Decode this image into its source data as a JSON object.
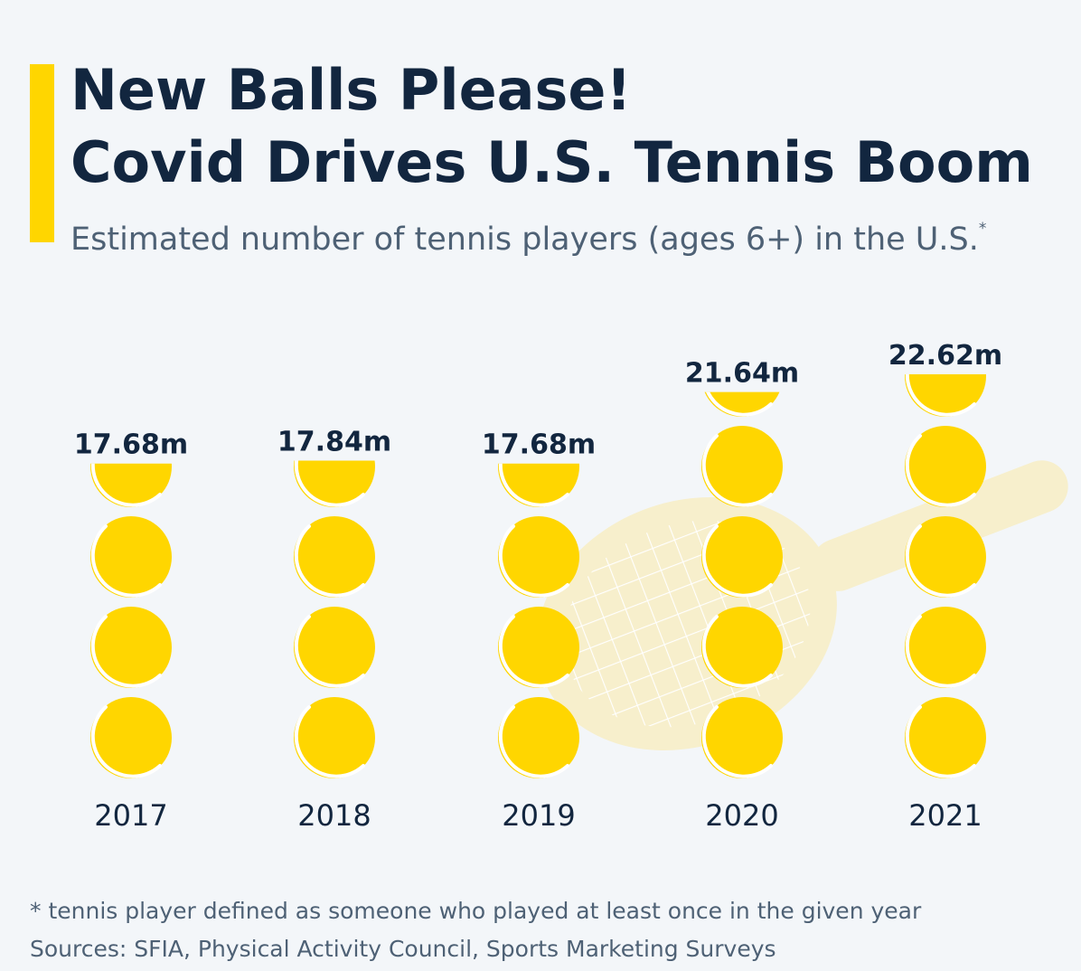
{
  "header": {
    "title_line1": "New Balls Please!",
    "title_line2": "Covid Drives U.S. Tennis Boom",
    "subtitle": "Estimated number of tennis players (ages 6+) in the U.S.",
    "subtitle_mark": "*"
  },
  "footer": {
    "footnote": "* tennis player defined as someone who played at least once in the given year",
    "sources": "Sources: SFIA, Physical Activity Council, Sports Marketing Surveys"
  },
  "colors": {
    "background": "#f3f6f9",
    "accent": "#ffd600",
    "ball": "#ffd600",
    "ball_seam": "#ffffff",
    "racket": "#f7efcc",
    "text_dark": "#12263f",
    "text_muted": "#4e6175"
  },
  "icons": {
    "unit_icon": "tennis-ball-icon",
    "background_icon": "tennis-racket-icon"
  },
  "chart_data": {
    "type": "bar",
    "categories": [
      "2017",
      "2018",
      "2019",
      "2020",
      "2021"
    ],
    "values": [
      17.68,
      17.84,
      17.68,
      21.64,
      22.62
    ],
    "value_labels": [
      "17.68m",
      "17.84m",
      "17.68m",
      "21.64m",
      "22.62m"
    ],
    "unit": "m",
    "ylim": [
      0,
      22.62
    ]
  }
}
